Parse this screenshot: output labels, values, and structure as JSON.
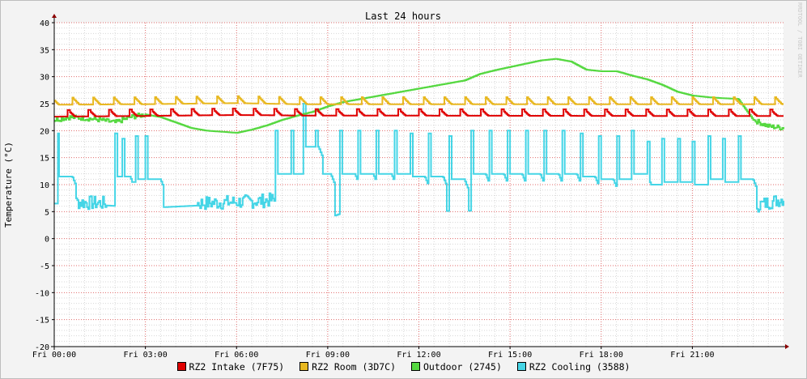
{
  "chart_data": {
    "type": "line",
    "title": "Last 24 hours",
    "ylabel": "Temperature (°C)",
    "watermark": "RRDTOOL / TOBI OETIKER",
    "ylim": [
      -20,
      40
    ],
    "y_ticks": [
      -20,
      -15,
      -10,
      -5,
      0,
      5,
      10,
      15,
      20,
      25,
      30,
      35,
      40
    ],
    "x_ticks": [
      {
        "hour": 0,
        "label": "Fri 00:00"
      },
      {
        "hour": 3,
        "label": "Fri 03:00"
      },
      {
        "hour": 6,
        "label": "Fri 06:00"
      },
      {
        "hour": 9,
        "label": "Fri 09:00"
      },
      {
        "hour": 12,
        "label": "Fri 12:00"
      },
      {
        "hour": 15,
        "label": "Fri 15:00"
      },
      {
        "hour": 18,
        "label": "Fri 18:00"
      },
      {
        "hour": 21,
        "label": "Fri 21:00"
      }
    ],
    "xlim_hours": [
      0,
      24.0
    ],
    "grid": true,
    "legend_position": "bottom",
    "colors": {
      "background": "#f3f3f3",
      "canvas": "#ffffff",
      "grid_major": "#e06b6b",
      "grid_minor": "#d7d7d7",
      "axis": "#000000",
      "arrow": "#8b0000"
    },
    "series": [
      {
        "name": "RZ2 Intake (7F75)",
        "color": "#e00000",
        "pattern": {
          "type": "sawtooth",
          "x": [
            0,
            2.5,
            6,
            8,
            24
          ],
          "base": [
            22.6,
            22.7,
            22.9,
            22.8,
            22.7
          ],
          "bump": 1.2,
          "period": 0.68
        }
      },
      {
        "name": "RZ2 Room (3D7C)",
        "color": "#e8b820",
        "pattern": {
          "type": "sawtooth",
          "x": [
            0,
            3,
            6,
            8,
            24
          ],
          "base": [
            24.8,
            24.9,
            25.1,
            24.9,
            24.9
          ],
          "bump": 1.3,
          "period": 0.68
        }
      },
      {
        "name": "Outdoor (2745)",
        "color": "#55d840",
        "x": [
          0,
          0.5,
          1,
          1.5,
          2,
          2.5,
          3,
          3.5,
          4,
          4.5,
          5,
          5.5,
          6,
          6.5,
          7,
          7.5,
          8,
          8.5,
          9,
          9.5,
          10,
          10.5,
          11,
          11.5,
          12,
          12.5,
          13,
          13.5,
          14,
          14.5,
          15,
          15.5,
          16,
          16.5,
          17,
          17.5,
          18,
          18.5,
          19,
          19.5,
          20,
          20.5,
          21,
          21.5,
          22,
          22.5,
          23,
          23.5,
          24
        ],
        "values": [
          22.0,
          22.5,
          22.3,
          22.0,
          21.5,
          22.5,
          23.0,
          22.5,
          21.5,
          20.5,
          20.0,
          19.8,
          19.6,
          20.2,
          21.0,
          22.0,
          22.8,
          23.5,
          24.5,
          25.3,
          25.8,
          26.3,
          26.8,
          27.3,
          27.8,
          28.3,
          28.8,
          29.3,
          30.5,
          31.2,
          31.8,
          32.4,
          33.0,
          33.3,
          32.8,
          31.3,
          31.0,
          31.0,
          30.2,
          29.5,
          28.5,
          27.2,
          26.5,
          26.2,
          26.0,
          25.9,
          22.0,
          20.8,
          20.5
        ]
      },
      {
        "name": "RZ2 Cooling (3588)",
        "color": "#45d5e6",
        "base_x": [
          0,
          2.3,
          3.5,
          5,
          6.5,
          7.2,
          7.8,
          8.3,
          9,
          9.6,
          11,
          14,
          17,
          20,
          23,
          24
        ],
        "base_values": [
          6.5,
          6.0,
          5.8,
          6.2,
          6.5,
          6.8,
          5.0,
          4.8,
          3.8,
          5.0,
          5.0,
          5.2,
          5.3,
          5.5,
          5.6,
          7.0
        ],
        "noise_bands": [
          [
            0.25,
            1.7
          ],
          [
            4.7,
            7.3
          ],
          [
            23.0,
            24.0
          ]
        ],
        "spikes": [
          {
            "hour": 0.1,
            "value": 19.5
          },
          {
            "hour": 2.0,
            "value": 19.5
          },
          {
            "hour": 2.25,
            "value": 18.5
          },
          {
            "hour": 2.7,
            "value": 19.0
          },
          {
            "hour": 3.0,
            "value": 19.0
          },
          {
            "hour": 7.3,
            "value": 20.0
          },
          {
            "hour": 7.8,
            "value": 20.0
          },
          {
            "hour": 8.2,
            "value": 25.0
          },
          {
            "hour": 8.6,
            "value": 20.0
          },
          {
            "hour": 9.4,
            "value": 20.0
          },
          {
            "hour": 10.0,
            "value": 20.0
          },
          {
            "hour": 10.6,
            "value": 20.0
          },
          {
            "hour": 11.2,
            "value": 20.0
          },
          {
            "hour": 11.7,
            "value": 19.5
          },
          {
            "hour": 12.3,
            "value": 19.5
          },
          {
            "hour": 13.0,
            "value": 19.0
          },
          {
            "hour": 13.7,
            "value": 20.0
          },
          {
            "hour": 14.3,
            "value": 20.0
          },
          {
            "hour": 14.9,
            "value": 20.0
          },
          {
            "hour": 15.5,
            "value": 20.0
          },
          {
            "hour": 16.1,
            "value": 20.0
          },
          {
            "hour": 16.7,
            "value": 20.0
          },
          {
            "hour": 17.3,
            "value": 19.5
          },
          {
            "hour": 17.9,
            "value": 19.0
          },
          {
            "hour": 18.5,
            "value": 19.0
          },
          {
            "hour": 19.0,
            "value": 20.0
          },
          {
            "hour": 19.5,
            "value": 18.0
          },
          {
            "hour": 20.0,
            "value": 18.5
          },
          {
            "hour": 20.5,
            "value": 18.5
          },
          {
            "hour": 21.0,
            "value": 18.0
          },
          {
            "hour": 21.5,
            "value": 19.0
          },
          {
            "hour": 22.0,
            "value": 18.5
          },
          {
            "hour": 22.5,
            "value": 19.0
          }
        ]
      }
    ]
  }
}
